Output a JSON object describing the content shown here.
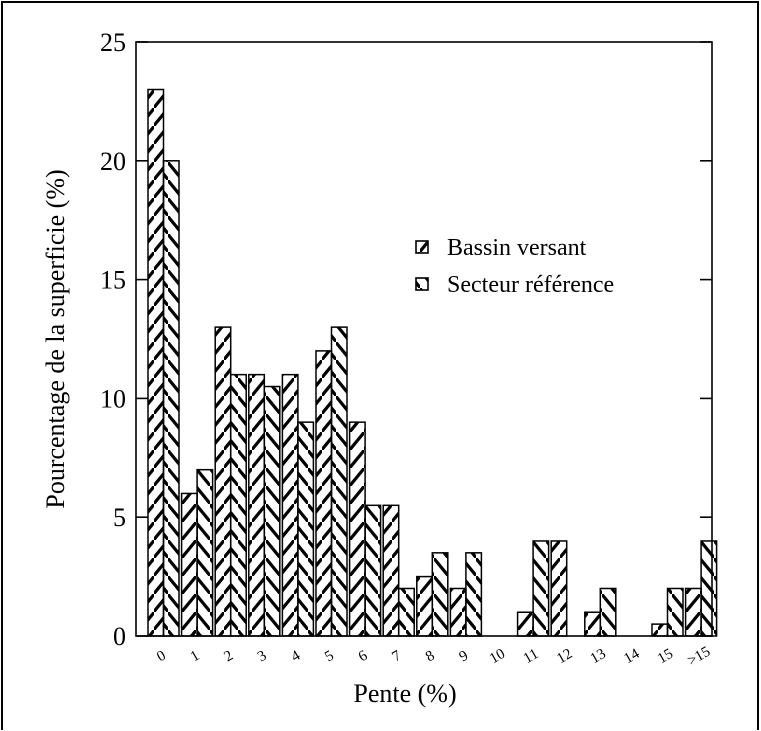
{
  "chart_data": {
    "type": "bar",
    "xlabel": "Pente (%)",
    "ylabel": "Pourcentage de la superficie (%)",
    "ylim": [
      0,
      25
    ],
    "yticks": [
      0,
      5,
      10,
      15,
      20,
      25
    ],
    "categories": [
      "0",
      "1",
      "2",
      "3",
      "4",
      "5",
      "6",
      "7",
      "8",
      "9",
      "10",
      "11",
      "12",
      "13",
      "14",
      "15",
      ">15"
    ],
    "series": [
      {
        "name": "Bassin versant",
        "values": [
          23,
          6,
          13,
          11,
          11,
          12,
          9,
          5.5,
          2.5,
          2,
          0,
          1,
          4,
          1,
          0,
          0.5,
          2
        ]
      },
      {
        "name": "Secteur référence",
        "values": [
          20,
          7,
          11,
          10.5,
          9,
          13,
          5.5,
          2,
          3.5,
          3.5,
          0,
          4,
          0,
          2,
          0,
          2,
          4
        ]
      }
    ],
    "legend_position": "upper-right",
    "grid": false
  },
  "colors": {
    "ink": "#000000",
    "background": "#ffffff"
  }
}
